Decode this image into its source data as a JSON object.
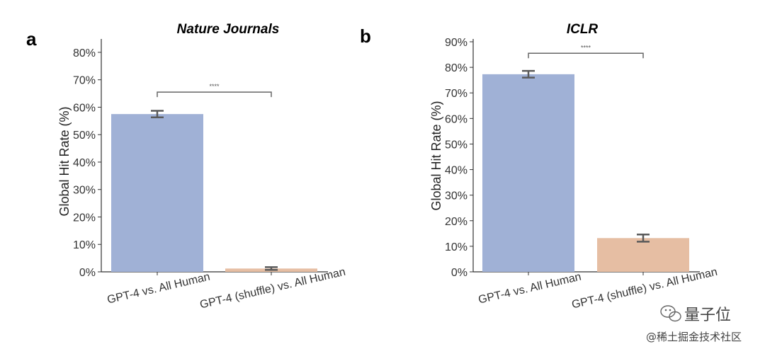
{
  "chart_data": [
    {
      "type": "bar",
      "panel_label": "a",
      "title": "Nature Journals",
      "xlabel": "",
      "ylabel": "Global Hit Rate (%)",
      "ylim": [
        0,
        85
      ],
      "y_ticks": [
        0,
        10,
        20,
        30,
        40,
        50,
        60,
        70,
        80
      ],
      "y_tick_labels": [
        "0%",
        "10%",
        "20%",
        "30%",
        "40%",
        "50%",
        "60%",
        "70%",
        "80%"
      ],
      "categories": [
        "GPT-4 vs. All Human",
        "GPT-4 (shuffle) vs. All Human"
      ],
      "values": [
        57.5,
        1.2
      ],
      "error": [
        1.2,
        0.5
      ],
      "colors": [
        "#a0b1d6",
        "#e6bea3"
      ],
      "significance": {
        "from": 0,
        "to": 1,
        "y": 65.5,
        "label": "****"
      }
    },
    {
      "type": "bar",
      "panel_label": "b",
      "title": "ICLR",
      "xlabel": "",
      "ylabel": "Global Hit Rate (%)",
      "ylim": [
        0,
        90
      ],
      "y_ticks": [
        0,
        10,
        20,
        30,
        40,
        50,
        60,
        70,
        80,
        90
      ],
      "y_tick_labels": [
        "0%",
        "10%",
        "20%",
        "30%",
        "40%",
        "50%",
        "60%",
        "70%",
        "80%",
        "90%"
      ],
      "categories": [
        "GPT-4 vs. All Human",
        "GPT-4 (shuffle) vs. All Human"
      ],
      "values": [
        77.3,
        13.2
      ],
      "error": [
        1.3,
        1.4
      ],
      "colors": [
        "#a0b1d6",
        "#e6bea3"
      ],
      "significance": {
        "from": 0,
        "to": 1,
        "y": 85.5,
        "label": "****"
      }
    }
  ],
  "watermark": {
    "brand": "量子位",
    "credit": "@稀土掘金技术社区"
  }
}
